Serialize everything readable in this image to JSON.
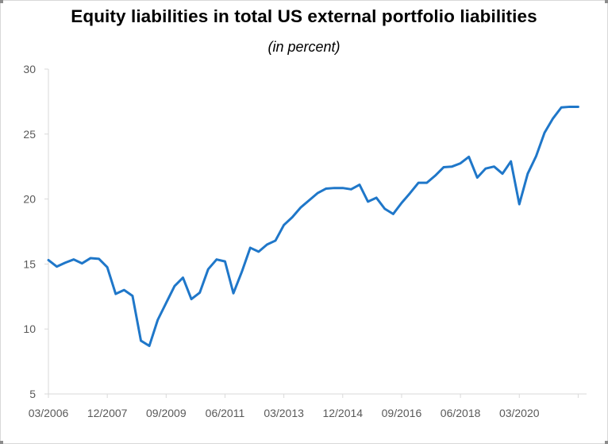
{
  "chart_data": {
    "type": "line",
    "title": "Equity liabilities in total US external portfolio liabilities",
    "subtitle": "(in percent)",
    "xlabel": "",
    "ylabel": "",
    "ylim": [
      5,
      30
    ],
    "yticks": [
      5,
      10,
      15,
      20,
      25,
      30
    ],
    "xtick_labels": [
      "03/2006",
      "12/2007",
      "09/2009",
      "06/2011",
      "03/2013",
      "12/2014",
      "09/2016",
      "06/2018",
      "03/2020"
    ],
    "grid": false,
    "line_color": "#1f77c9",
    "series": [
      {
        "x": [
          "03/2006",
          "06/2006",
          "09/2006",
          "12/2006",
          "03/2007",
          "06/2007",
          "09/2007",
          "12/2007",
          "03/2008",
          "06/2008",
          "09/2008",
          "12/2008",
          "03/2009",
          "06/2009",
          "09/2009",
          "12/2009",
          "03/2010",
          "06/2010",
          "09/2010",
          "12/2010",
          "03/2011",
          "06/2011",
          "09/2011",
          "12/2011",
          "03/2012",
          "06/2012",
          "09/2012",
          "12/2012",
          "03/2013",
          "06/2013",
          "09/2013",
          "12/2013",
          "03/2014",
          "06/2014",
          "09/2014",
          "12/2014",
          "03/2015",
          "06/2015",
          "09/2015",
          "12/2015",
          "03/2016",
          "06/2016",
          "09/2016",
          "12/2016",
          "03/2017",
          "06/2017",
          "09/2017",
          "12/2017",
          "03/2018",
          "06/2018",
          "09/2018",
          "12/2018",
          "03/2019",
          "06/2019",
          "09/2019",
          "12/2019",
          "03/2020",
          "06/2020",
          "09/2020",
          "12/2020",
          "03/2021",
          "06/2021",
          "09/2021",
          "12/2021"
        ],
        "values": [
          15.3,
          14.8,
          15.1,
          15.35,
          15.05,
          15.45,
          15.4,
          14.75,
          12.7,
          13.0,
          12.55,
          9.1,
          8.7,
          10.7,
          12.0,
          13.3,
          13.95,
          12.3,
          12.8,
          14.6,
          15.35,
          15.2,
          12.75,
          14.4,
          16.25,
          15.95,
          16.5,
          16.8,
          18.0,
          18.6,
          19.35,
          19.9,
          20.45,
          20.8,
          20.85,
          20.85,
          20.75,
          21.1,
          19.8,
          20.1,
          19.25,
          18.85,
          19.7,
          20.45,
          21.25,
          21.25,
          21.8,
          22.45,
          22.5,
          22.75,
          23.25,
          21.65,
          22.35,
          22.5,
          21.95,
          22.9,
          19.6,
          21.95,
          23.3,
          25.1,
          26.2,
          27.05,
          27.1,
          27.1
        ]
      }
    ]
  }
}
